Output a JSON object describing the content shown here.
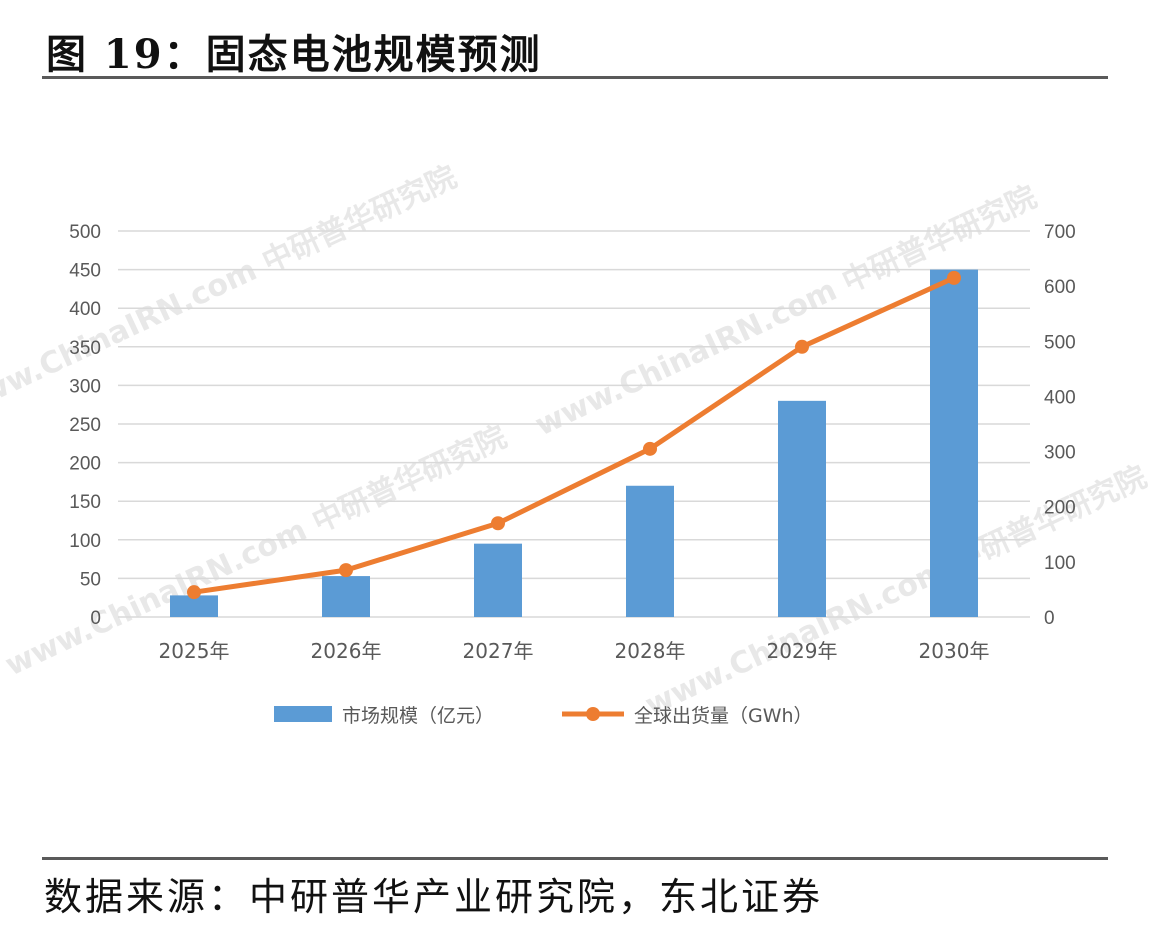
{
  "figure": {
    "title": "图 19：固态电池规模预测",
    "source": "数据来源：中研普华产业研究院，东北证券"
  },
  "watermark": "www.ChinaIRN.com 中研普华研究院",
  "colors": {
    "bar": "#5b9bd5",
    "line": "#ed7d31",
    "grid": "#d9d9d9",
    "axis_text": "#595959"
  },
  "chart_data": {
    "type": "bar",
    "title": "",
    "categories": [
      "2025年",
      "2026年",
      "2027年",
      "2028年",
      "2029年",
      "2030年"
    ],
    "series": [
      {
        "name": "市场规模（亿元）",
        "type": "bar",
        "axis": "left",
        "values": [
          28,
          53,
          95,
          170,
          280,
          450
        ]
      },
      {
        "name": "全球出货量（GWh）",
        "type": "line",
        "axis": "right",
        "values": [
          45,
          85,
          170,
          305,
          490,
          615
        ]
      }
    ],
    "y_left": {
      "lim": [
        0,
        500
      ],
      "ticks": [
        0,
        50,
        100,
        150,
        200,
        250,
        300,
        350,
        400,
        450,
        500
      ]
    },
    "y_right": {
      "lim": [
        0,
        700
      ],
      "ticks": [
        0,
        100,
        200,
        300,
        400,
        500,
        600,
        700
      ]
    },
    "grid": true,
    "legend": "bottom-center"
  }
}
